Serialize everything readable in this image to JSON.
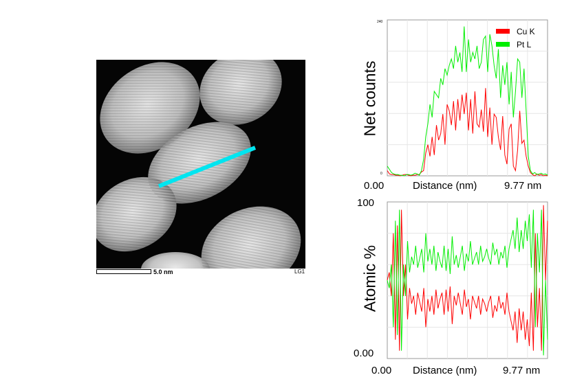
{
  "stem_image": {
    "scale_bar_label": "5.0 nm",
    "detector_label": "LG1",
    "line_color": "#00e5f0"
  },
  "colors": {
    "cu": "#ff0000",
    "pt": "#00ee00",
    "grid": "#e6e6e6"
  },
  "chart_data": [
    {
      "type": "line",
      "title": "",
      "ylabel": "Net counts",
      "xlabel": "Distance (nm)",
      "x_start_label": "0.00",
      "x_end_label": "9.77 nm",
      "y_top_tick": "240",
      "y_bottom_tick": "0",
      "xlim": [
        0,
        9.77
      ],
      "ylim": [
        0,
        240
      ],
      "legend_position": "top-right",
      "series": [
        {
          "name": "Cu K",
          "color": "#ff0000",
          "values": [
            8,
            3,
            2,
            2,
            1,
            1,
            0,
            1,
            2,
            2,
            1,
            0,
            1,
            1,
            2,
            2,
            6,
            8,
            35,
            48,
            30,
            60,
            32,
            78,
            55,
            65,
            95,
            48,
            110,
            100,
            78,
            115,
            70,
            118,
            85,
            125,
            95,
            128,
            70,
            118,
            65,
            130,
            80,
            75,
            102,
            68,
            135,
            60,
            105,
            48,
            95,
            90,
            60,
            40,
            92,
            32,
            18,
            72,
            80,
            15,
            8,
            40,
            100,
            50,
            55,
            30,
            15,
            5,
            2,
            0,
            3,
            1,
            2,
            0,
            1,
            0
          ]
        },
        {
          "name": "Pt L",
          "color": "#00ee00",
          "values": [
            15,
            10,
            5,
            3,
            2,
            2,
            1,
            1,
            0,
            2,
            2,
            1,
            2,
            4,
            3,
            1,
            8,
            25,
            60,
            80,
            110,
            90,
            130,
            125,
            120,
            150,
            140,
            165,
            155,
            170,
            180,
            165,
            200,
            175,
            190,
            160,
            230,
            160,
            210,
            175,
            190,
            180,
            200,
            165,
            175,
            210,
            215,
            160,
            218,
            200,
            170,
            150,
            195,
            120,
            170,
            140,
            175,
            110,
            160,
            90,
            130,
            180,
            175,
            120,
            165,
            100,
            30,
            8,
            3,
            5,
            2,
            3,
            4,
            2,
            3,
            1
          ]
        }
      ]
    },
    {
      "type": "line",
      "title": "",
      "ylabel": "Atomic %",
      "xlabel": "Distance (nm)",
      "x_start_label": "0.00",
      "x_end_label": "9.77 nm",
      "y_top_tick": "100",
      "y_bottom_tick": "0.00",
      "xlim": [
        0,
        9.77
      ],
      "ylim": [
        0,
        100
      ],
      "series": [
        {
          "name": "Cu K",
          "color": "#ff0000",
          "values": [
            50,
            55,
            40,
            80,
            12,
            85,
            5,
            95,
            40,
            60,
            25,
            45,
            35,
            40,
            28,
            42,
            36,
            30,
            45,
            20,
            38,
            30,
            40,
            28,
            44,
            32,
            38,
            42,
            28,
            44,
            30,
            46,
            22,
            40,
            34,
            42,
            35,
            28,
            44,
            33,
            38,
            25,
            40,
            36,
            32,
            40,
            28,
            38,
            35,
            30,
            36,
            40,
            26,
            34,
            30,
            40,
            32,
            36,
            28,
            42,
            30,
            24,
            18,
            30,
            10,
            32,
            18,
            30,
            12,
            25,
            8,
            42,
            5,
            80,
            20,
            45,
            5,
            98,
            50,
            88
          ]
        },
        {
          "name": "Pt L",
          "color": "#00ee00",
          "values": [
            50,
            45,
            60,
            20,
            88,
            15,
            95,
            5,
            60,
            40,
            75,
            55,
            65,
            60,
            72,
            58,
            64,
            70,
            55,
            80,
            62,
            70,
            60,
            72,
            56,
            68,
            62,
            58,
            72,
            56,
            70,
            54,
            78,
            60,
            66,
            58,
            65,
            72,
            56,
            67,
            62,
            75,
            60,
            64,
            68,
            60,
            72,
            62,
            65,
            70,
            64,
            60,
            74,
            66,
            70,
            60,
            68,
            64,
            72,
            58,
            70,
            76,
            82,
            70,
            90,
            68,
            82,
            70,
            88,
            75,
            92,
            58,
            95,
            20,
            80,
            55,
            95,
            2,
            50,
            12
          ]
        }
      ]
    }
  ]
}
